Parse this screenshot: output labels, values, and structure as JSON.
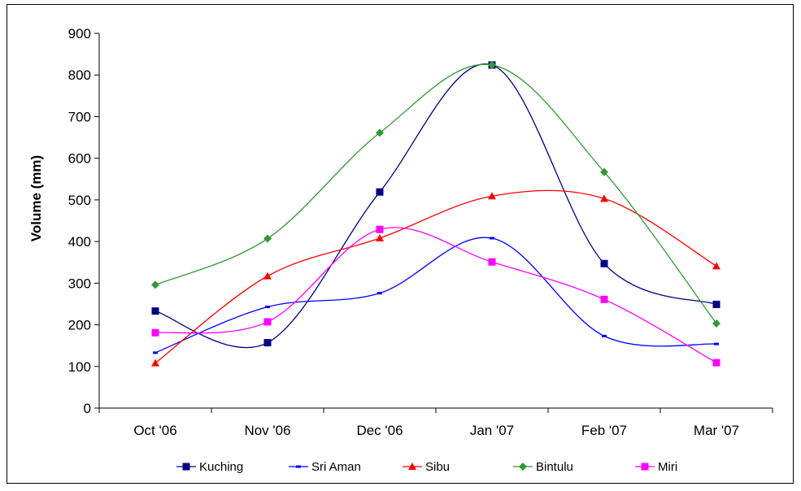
{
  "chart_data": {
    "type": "line",
    "title": "",
    "xlabel": "",
    "ylabel": "Volume (mm)",
    "categories": [
      "Oct '06",
      "Nov '06",
      "Dec '06",
      "Jan '07",
      "Feb '07",
      "Mar '07"
    ],
    "ylim": [
      0,
      900
    ],
    "yticks": [
      0,
      100,
      200,
      300,
      400,
      500,
      600,
      700,
      800,
      900
    ],
    "grid": false,
    "legend_position": "bottom",
    "smooth": true,
    "series": [
      {
        "name": "Kuching",
        "color": "#000080",
        "marker": "square",
        "values": [
          233,
          157,
          519,
          824,
          347,
          249
        ]
      },
      {
        "name": "Sri Aman",
        "color": "#0000FF",
        "marker": "dash",
        "values": [
          133,
          243,
          276,
          408,
          173,
          154
        ]
      },
      {
        "name": "Sibu",
        "color": "#FF0000",
        "marker": "triangle",
        "values": [
          108,
          317,
          408,
          509,
          503,
          341
        ]
      },
      {
        "name": "Bintulu",
        "color": "#339933",
        "marker": "diamond",
        "values": [
          296,
          407,
          661,
          824,
          567,
          203
        ]
      },
      {
        "name": "Miri",
        "color": "#FF00FF",
        "marker": "square",
        "values": [
          181,
          207,
          429,
          351,
          261,
          109
        ]
      }
    ]
  }
}
